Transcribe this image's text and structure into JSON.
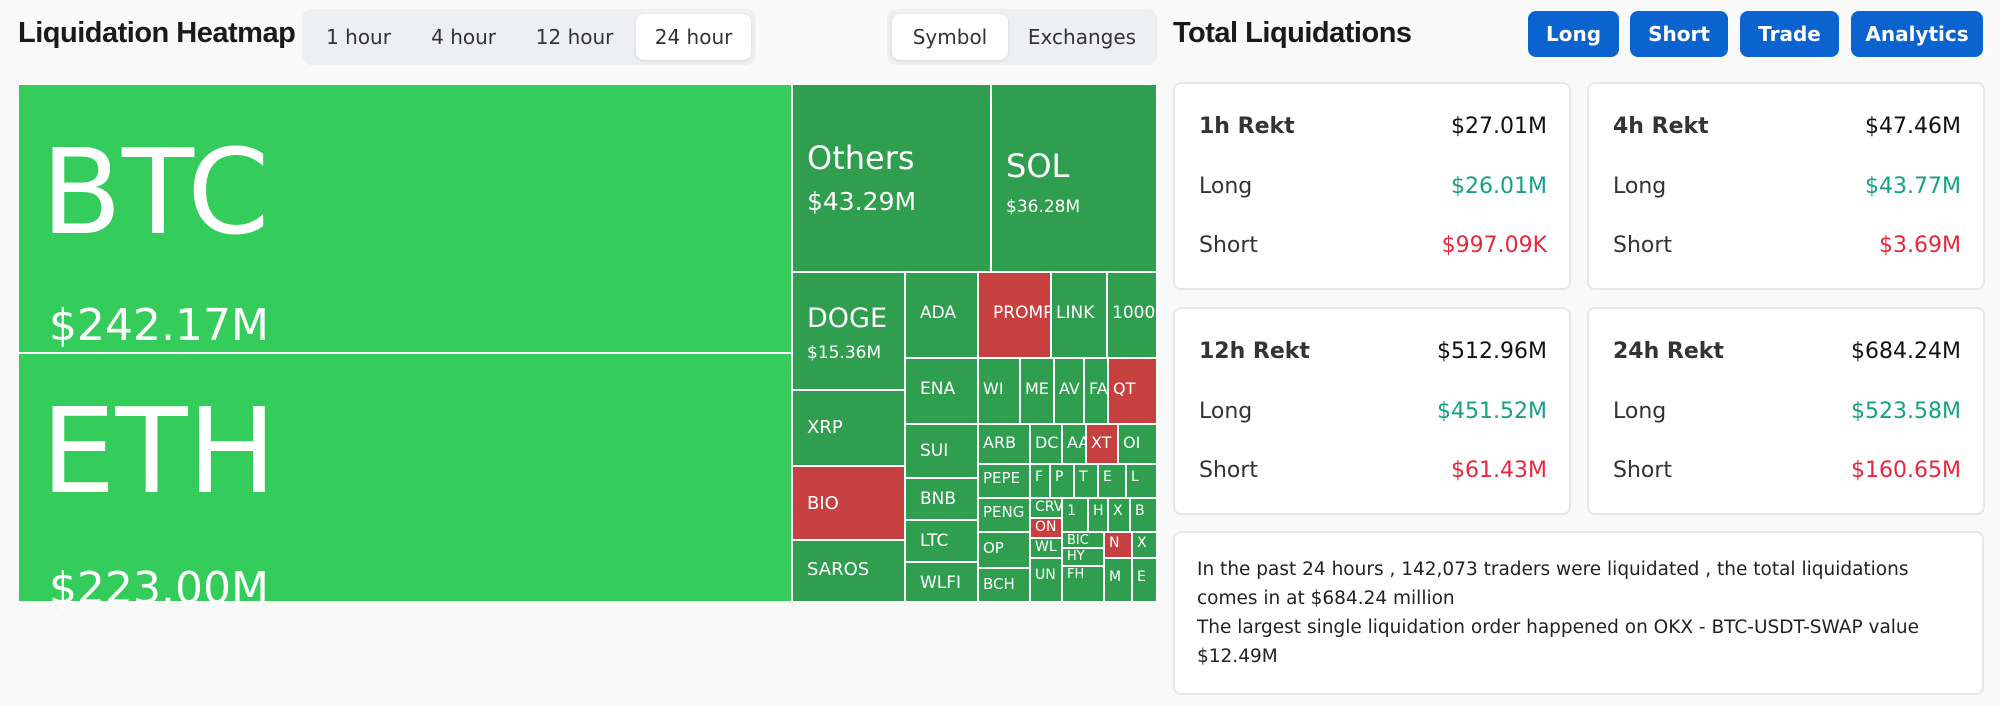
{
  "heatmap": {
    "title": "Liquidation Heatmap",
    "timeframes": [
      "1 hour",
      "4 hour",
      "12 hour",
      "24 hour"
    ],
    "active_timeframe": "24 hour",
    "views": [
      "Symbol",
      "Exchanges"
    ],
    "active_view": "Symbol"
  },
  "totals": {
    "title": "Total Liquidations",
    "buttons": [
      "Long",
      "Short",
      "Trade",
      "Analytics"
    ]
  },
  "colors": {
    "green": "#34cc5a",
    "dark_green": "#2f9e4f",
    "red": "#c5403f",
    "accent": "#0b63d0",
    "long_text": "#16a085",
    "short_text": "#e5283e"
  },
  "tiles": [
    {
      "sym": "BTC",
      "val": "$242.17M"
    },
    {
      "sym": "ETH",
      "val": "$223.00M"
    },
    {
      "sym": "Others",
      "val": "$43.29M"
    },
    {
      "sym": "SOL",
      "val": "$36.28M"
    },
    {
      "sym": "DOGE",
      "val": "$15.36M"
    },
    {
      "sym": "XRP",
      "val": ""
    },
    {
      "sym": "BIO",
      "val": ""
    },
    {
      "sym": "SAROS",
      "val": ""
    },
    {
      "sym": "ADA",
      "val": ""
    },
    {
      "sym": "ENA",
      "val": ""
    },
    {
      "sym": "SUI",
      "val": ""
    },
    {
      "sym": "BNB",
      "val": ""
    },
    {
      "sym": "LTC",
      "val": ""
    },
    {
      "sym": "WLFI",
      "val": ""
    },
    {
      "sym": "PROMP",
      "val": ""
    },
    {
      "sym": "LINK",
      "val": ""
    },
    {
      "sym": "1000",
      "val": ""
    },
    {
      "sym": "WI",
      "val": ""
    },
    {
      "sym": "ME",
      "val": ""
    },
    {
      "sym": "AV",
      "val": ""
    },
    {
      "sym": "FA",
      "val": ""
    },
    {
      "sym": "QT",
      "val": ""
    },
    {
      "sym": "ARB",
      "val": ""
    },
    {
      "sym": "DC",
      "val": ""
    },
    {
      "sym": "AA",
      "val": ""
    },
    {
      "sym": "XT",
      "val": ""
    },
    {
      "sym": "OI",
      "val": ""
    },
    {
      "sym": "PEPE",
      "val": ""
    },
    {
      "sym": "F",
      "val": ""
    },
    {
      "sym": "P",
      "val": ""
    },
    {
      "sym": "T",
      "val": ""
    },
    {
      "sym": "E",
      "val": ""
    },
    {
      "sym": "L",
      "val": ""
    },
    {
      "sym": "PENG",
      "val": ""
    },
    {
      "sym": "CRV",
      "val": ""
    },
    {
      "sym": "1",
      "val": ""
    },
    {
      "sym": "H",
      "val": ""
    },
    {
      "sym": "X",
      "val": ""
    },
    {
      "sym": "B",
      "val": ""
    },
    {
      "sym": "OP",
      "val": ""
    },
    {
      "sym": "ON",
      "val": ""
    },
    {
      "sym": "WL",
      "val": ""
    },
    {
      "sym": "BIC",
      "val": ""
    },
    {
      "sym": "N",
      "val": ""
    },
    {
      "sym": "X",
      "val": ""
    },
    {
      "sym": "BCH",
      "val": ""
    },
    {
      "sym": "UN",
      "val": ""
    },
    {
      "sym": "HY",
      "val": ""
    },
    {
      "sym": "FH",
      "val": ""
    },
    {
      "sym": "M",
      "val": ""
    },
    {
      "sym": "E",
      "val": ""
    }
  ],
  "cards": [
    {
      "period": "1h Rekt",
      "total": "$27.01M",
      "long_label": "Long",
      "long": "$26.01M",
      "short_label": "Short",
      "short": "$997.09K"
    },
    {
      "period": "4h Rekt",
      "total": "$47.46M",
      "long_label": "Long",
      "long": "$43.77M",
      "short_label": "Short",
      "short": "$3.69M"
    },
    {
      "period": "12h Rekt",
      "total": "$512.96M",
      "long_label": "Long",
      "long": "$451.52M",
      "short_label": "Short",
      "short": "$61.43M"
    },
    {
      "period": "24h Rekt",
      "total": "$684.24M",
      "long_label": "Long",
      "long": "$523.58M",
      "short_label": "Short",
      "short": "$160.65M"
    }
  ],
  "summary": {
    "line1": "In the past 24 hours , 142,073 traders were liquidated , the total liquidations comes in at $684.24 million",
    "line2": "The largest single liquidation order happened on OKX - BTC-USDT-SWAP value $12.49M"
  }
}
